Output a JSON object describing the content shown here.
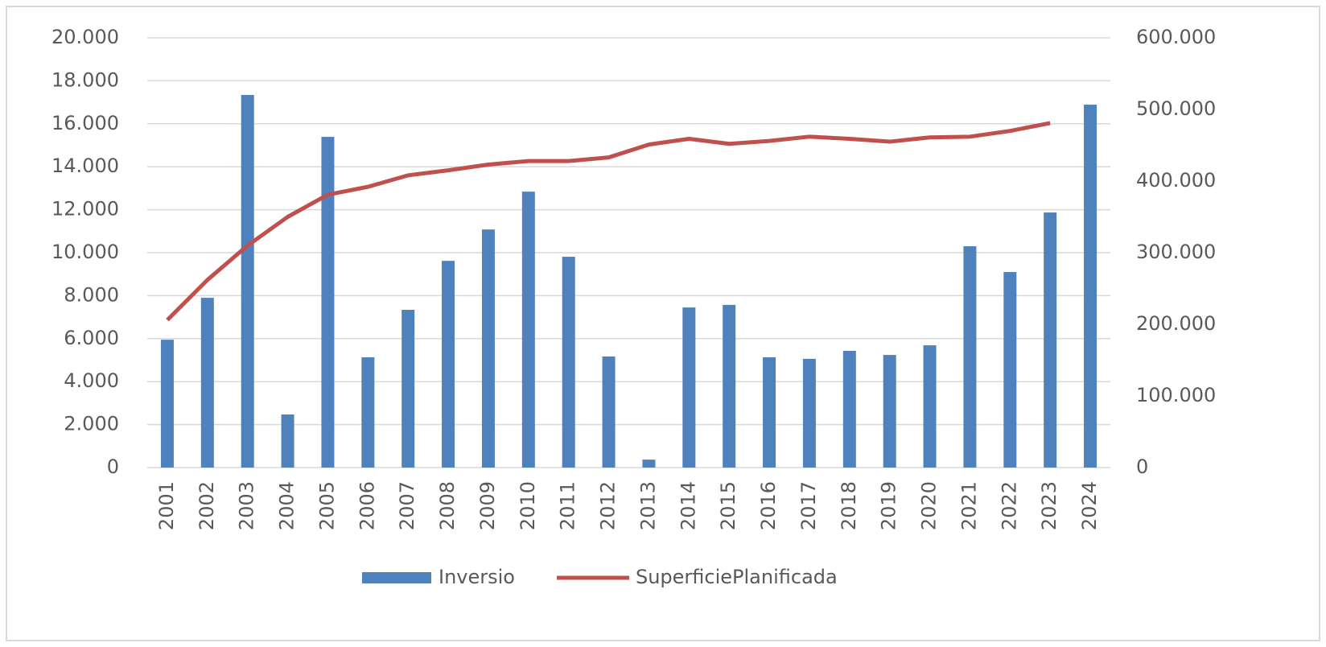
{
  "chart_data": {
    "type": "bar_line",
    "categories": [
      "2001",
      "2002",
      "2003",
      "2004",
      "2005",
      "2006",
      "2007",
      "2008",
      "2009",
      "2010",
      "2011",
      "2012",
      "2013",
      "2014",
      "2015",
      "2016",
      "2017",
      "2018",
      "2019",
      "2020",
      "2021",
      "2022",
      "2023",
      "2024"
    ],
    "series": [
      {
        "name": "Inversio",
        "color": "#4f81bd",
        "type": "bar",
        "values": [
          5950,
          7900,
          17340,
          2470,
          15390,
          5130,
          7340,
          9620,
          11080,
          12840,
          9810,
          5170,
          370,
          7450,
          7570,
          5130,
          5060,
          5430,
          5240,
          5690,
          10300,
          9100,
          11870,
          16890
        ]
      },
      {
        "name": "SuperficiePlanificada",
        "color": "#c0504d",
        "type": "line",
        "axis": "y2",
        "values": [
          206000,
          262000,
          310000,
          350000,
          381000,
          392000,
          408000,
          415000,
          423000,
          428000,
          428000,
          433000,
          451000,
          459000,
          452000,
          456000,
          462000,
          459000,
          455000,
          461000,
          462000,
          470000,
          481000,
          null
        ]
      }
    ],
    "ylim": [
      0,
      20000
    ],
    "yticks": [
      0,
      {
        "value": 2000,
        "label": "2.000"
      },
      {
        "value": 4000,
        "label": "4.000"
      },
      {
        "value": 6000,
        "label": "6.000"
      },
      {
        "value": 8000,
        "label": "8.000"
      },
      {
        "value": 10000,
        "label": "10.000"
      },
      {
        "value": 12000,
        "label": "12.000"
      },
      {
        "value": 14000,
        "label": "14.000"
      },
      {
        "value": 16000,
        "label": "16.000"
      },
      {
        "value": 18000,
        "label": "18.000"
      },
      {
        "value": 20000,
        "label": "20.000"
      }
    ],
    "y2lim": [
      0,
      600000
    ],
    "y2ticks": [
      0,
      {
        "value": 100000,
        "label": "100.000"
      },
      {
        "value": 200000,
        "label": "200.000"
      },
      {
        "value": 300000,
        "label": "300.000"
      },
      {
        "value": 400000,
        "label": "400.000"
      },
      {
        "value": 500000,
        "label": "500.000"
      },
      {
        "value": 600000,
        "label": "600.000"
      }
    ],
    "grid": true,
    "legend": "bottom"
  }
}
